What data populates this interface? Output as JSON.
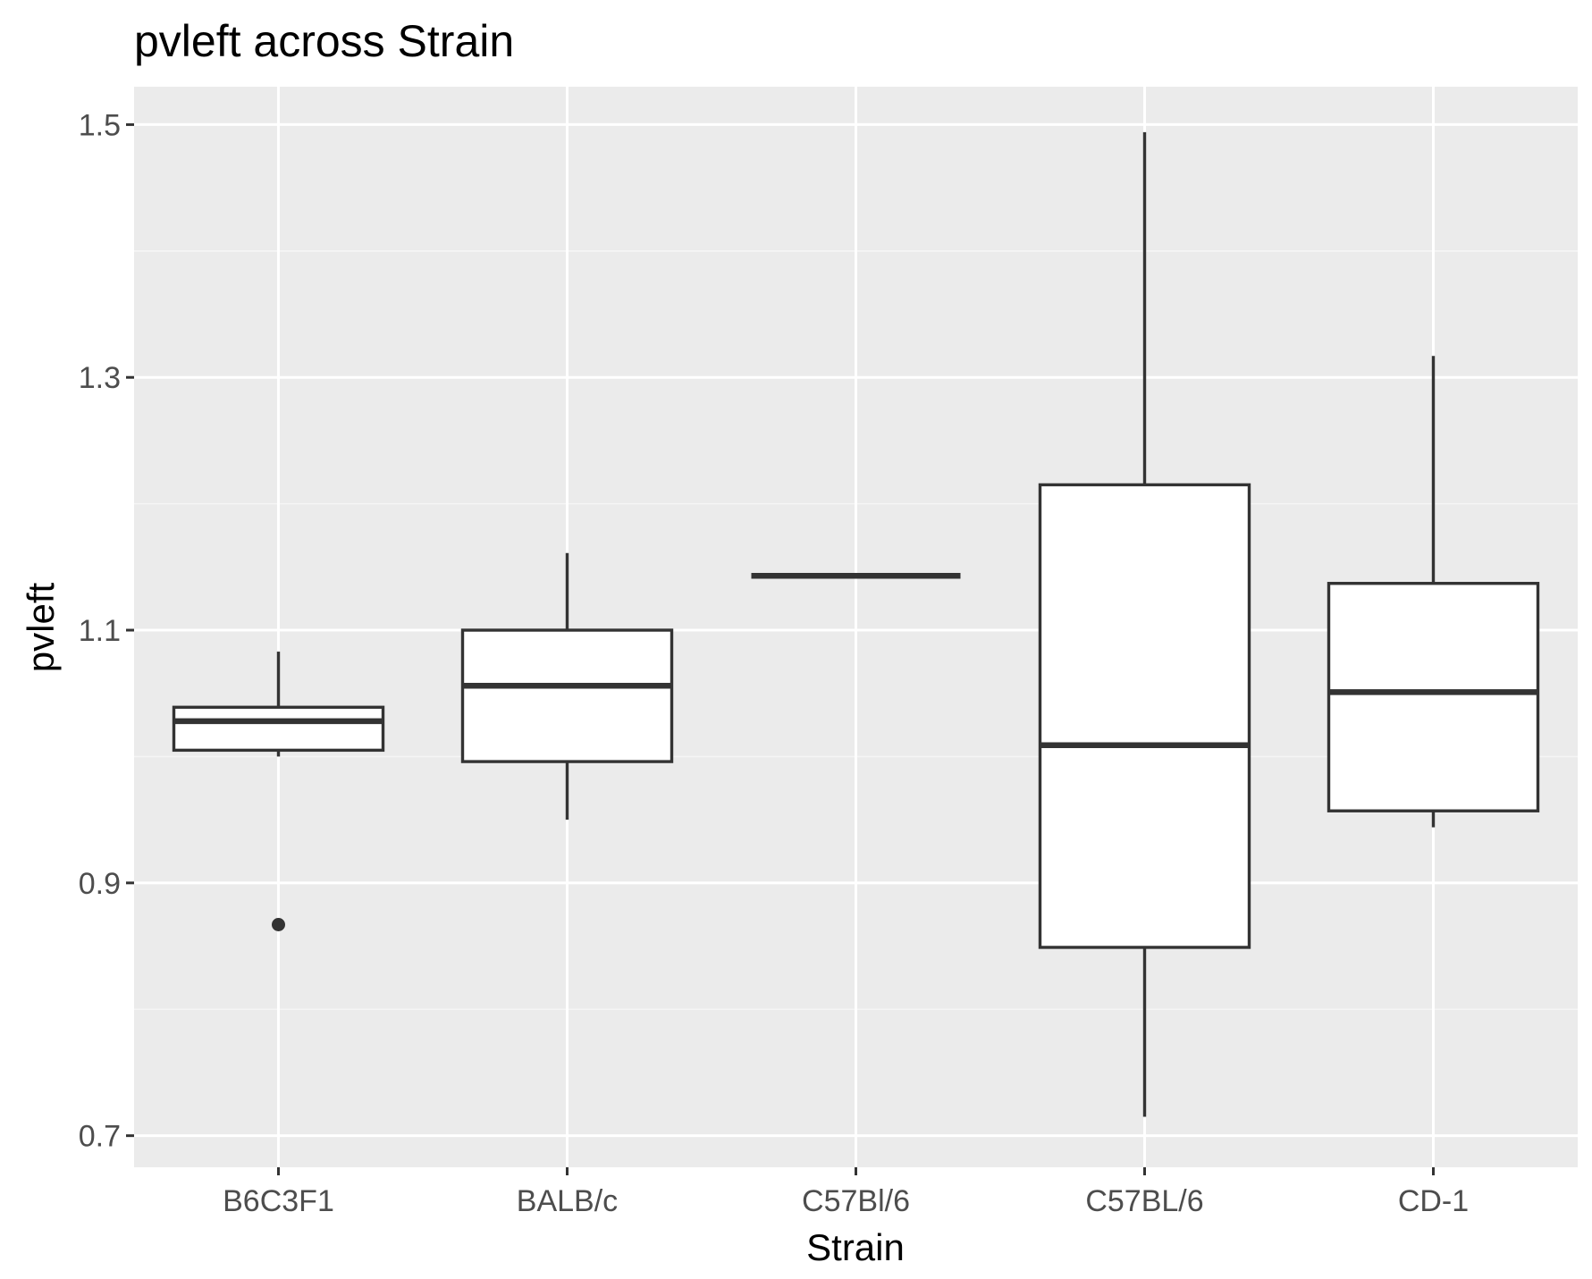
{
  "chart_data": {
    "type": "boxplot",
    "title": "pvleft across Strain",
    "xlabel": "Strain",
    "ylabel": "pvleft",
    "categories": [
      "B6C3F1",
      "BALB/c",
      "C57Bl/6",
      "C57BL/6",
      "CD-1"
    ],
    "boxes": [
      {
        "category": "B6C3F1",
        "whisker_low": 1.0,
        "q1": 1.005,
        "median": 1.028,
        "q3": 1.039,
        "whisker_high": 1.083,
        "outliers": [
          0.867
        ]
      },
      {
        "category": "BALB/c",
        "whisker_low": 0.95,
        "q1": 0.996,
        "median": 1.056,
        "q3": 1.1,
        "whisker_high": 1.161,
        "outliers": []
      },
      {
        "category": "C57Bl/6",
        "whisker_low": 1.143,
        "q1": 1.143,
        "median": 1.143,
        "q3": 1.143,
        "whisker_high": 1.143,
        "outliers": []
      },
      {
        "category": "C57BL/6",
        "whisker_low": 0.715,
        "q1": 0.849,
        "median": 1.009,
        "q3": 1.215,
        "whisker_high": 1.494,
        "outliers": []
      },
      {
        "category": "CD-1",
        "whisker_low": 0.944,
        "q1": 0.957,
        "median": 1.051,
        "q3": 1.137,
        "whisker_high": 1.317,
        "outliers": []
      }
    ],
    "ylim": [
      0.675,
      1.53
    ],
    "yticks": [
      0.7,
      0.9,
      1.1,
      1.3,
      1.5
    ],
    "ytick_labels": [
      "0.7",
      "0.9",
      "1.1",
      "1.3",
      "1.5"
    ],
    "grid": true,
    "legend": "none",
    "colors": {
      "panel_background": "#ebebeb",
      "grid_major": "#ffffff",
      "grid_minor": "#f5f5f5",
      "box_fill": "#ffffff",
      "box_stroke": "#333333",
      "tick_text": "#4d4d4d",
      "title_text": "#000000"
    }
  }
}
